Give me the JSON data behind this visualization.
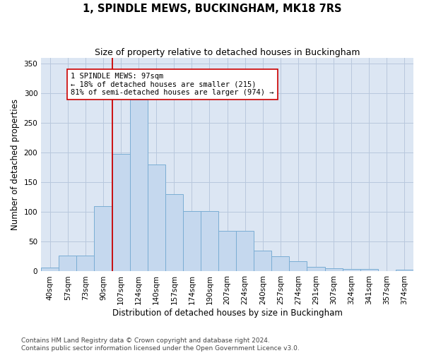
{
  "title": "1, SPINDLE MEWS, BUCKINGHAM, MK18 7RS",
  "subtitle": "Size of property relative to detached houses in Buckingham",
  "xlabel": "Distribution of detached houses by size in Buckingham",
  "ylabel": "Number of detached properties",
  "footer_line1": "Contains HM Land Registry data © Crown copyright and database right 2024.",
  "footer_line2": "Contains public sector information licensed under the Open Government Licence v3.0.",
  "categories": [
    "40sqm",
    "57sqm",
    "73sqm",
    "90sqm",
    "107sqm",
    "124sqm",
    "140sqm",
    "157sqm",
    "174sqm",
    "190sqm",
    "207sqm",
    "224sqm",
    "240sqm",
    "257sqm",
    "274sqm",
    "291sqm",
    "307sqm",
    "324sqm",
    "341sqm",
    "357sqm",
    "374sqm"
  ],
  "values": [
    7,
    27,
    27,
    110,
    198,
    290,
    180,
    130,
    102,
    102,
    68,
    68,
    35,
    25,
    17,
    8,
    5,
    4,
    4,
    1,
    3
  ],
  "bar_color": "#c5d8ee",
  "bar_edge_color": "#7aadd4",
  "vline_color": "#cc0000",
  "vline_x_index": 3.5,
  "property_label": "1 SPINDLE MEWS: 97sqm",
  "annotation_line1": "← 18% of detached houses are smaller (215)",
  "annotation_line2": "81% of semi-detached houses are larger (974) →",
  "annotation_box_color": "#ffffff",
  "annotation_box_edge": "#cc0000",
  "ylim": [
    0,
    360
  ],
  "yticks": [
    0,
    50,
    100,
    150,
    200,
    250,
    300,
    350
  ],
  "background_color": "#ffffff",
  "plot_bg_color": "#dce6f3",
  "grid_color": "#b8c8dd",
  "title_fontsize": 10.5,
  "subtitle_fontsize": 9,
  "axis_label_fontsize": 8.5,
  "tick_fontsize": 7.5,
  "footer_fontsize": 6.5,
  "annot_fontsize": 7.5
}
